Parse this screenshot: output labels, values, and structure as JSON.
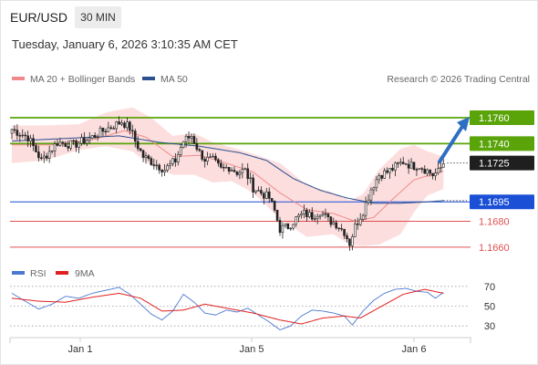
{
  "header": {
    "pair": "EUR/USD",
    "timeframe": "30 MIN",
    "datetime": "Tuesday, January 6, 2026 3:10:35 AM CET"
  },
  "legend": {
    "ma20": "MA 20 + Bollinger Bands",
    "ma50": "MA 50",
    "credit": "Research © 2026 Trading Central",
    "rsi": "RSI",
    "rsi_ma": "9MA"
  },
  "colors": {
    "resistance": "#5aa40a",
    "current": "#1f1f1f",
    "pivot": "#1a4fd6",
    "support": "#e05050",
    "ma20": "#f08a8a",
    "ma50": "#2b4f8f",
    "band": "#fbd3d3",
    "rsi": "#4a78d0",
    "rsi_ma": "#e02020",
    "arrow": "#2e6fc2"
  },
  "chart_data": [
    {
      "type": "candlestick",
      "x_labels": [
        "Jan 1",
        "Jan 5",
        "Jan 6"
      ],
      "ylim": [
        1.1655,
        1.1772
      ],
      "series": [
        {
          "name": "MA 20 + Bollinger Bands"
        },
        {
          "name": "MA 50"
        }
      ],
      "levels": [
        {
          "value": 1.176,
          "label": "1.1760",
          "kind": "resistance"
        },
        {
          "value": 1.174,
          "label": "1.1740",
          "kind": "resistance"
        },
        {
          "value": 1.1725,
          "label": "1.1725",
          "kind": "current"
        },
        {
          "value": 1.1695,
          "label": "1.1695",
          "kind": "pivot"
        },
        {
          "value": 1.168,
          "label": "1.1680",
          "kind": "support"
        },
        {
          "value": 1.166,
          "label": "1.1660",
          "kind": "support"
        }
      ],
      "anchors": [
        [
          0,
          1.1751
        ],
        [
          6,
          1.1745
        ],
        [
          11,
          1.1727
        ],
        [
          17,
          1.1741
        ],
        [
          23,
          1.1739
        ],
        [
          29,
          1.1744
        ],
        [
          35,
          1.1751
        ],
        [
          41,
          1.1757
        ],
        [
          44,
          1.1752
        ],
        [
          46,
          1.1742
        ],
        [
          49,
          1.173
        ],
        [
          53,
          1.1725
        ],
        [
          57,
          1.172
        ],
        [
          61,
          1.1727
        ],
        [
          64,
          1.1742
        ],
        [
          67,
          1.1746
        ],
        [
          70,
          1.1733
        ],
        [
          72,
          1.1728
        ],
        [
          75,
          1.1727
        ],
        [
          78,
          1.172
        ],
        [
          81,
          1.1722
        ],
        [
          84,
          1.1718
        ],
        [
          87,
          1.1719
        ],
        [
          90,
          1.1706
        ],
        [
          93,
          1.1702
        ],
        [
          96,
          1.1698
        ],
        [
          98,
          1.1688
        ],
        [
          100,
          1.1674
        ],
        [
          103,
          1.1676
        ],
        [
          106,
          1.1682
        ],
        [
          109,
          1.1686
        ],
        [
          112,
          1.1684
        ],
        [
          115,
          1.1688
        ],
        [
          118,
          1.1681
        ],
        [
          121,
          1.1678
        ],
        [
          124,
          1.1672
        ],
        [
          126,
          1.1663
        ],
        [
          128,
          1.1676
        ],
        [
          131,
          1.1688
        ],
        [
          134,
          1.1705
        ],
        [
          137,
          1.1716
        ],
        [
          140,
          1.1718
        ],
        [
          143,
          1.1722
        ],
        [
          146,
          1.1726
        ],
        [
          149,
          1.1723
        ],
        [
          152,
          1.1723
        ],
        [
          155,
          1.1719
        ],
        [
          157,
          1.1716
        ],
        [
          159,
          1.1718
        ],
        [
          161,
          1.1725
        ]
      ],
      "ma20_points": [
        [
          0,
          1.1739
        ],
        [
          15,
          1.1739
        ],
        [
          30,
          1.1743
        ],
        [
          42,
          1.175
        ],
        [
          50,
          1.1745
        ],
        [
          60,
          1.173
        ],
        [
          70,
          1.1731
        ],
        [
          80,
          1.1725
        ],
        [
          90,
          1.1718
        ],
        [
          100,
          1.1702
        ],
        [
          110,
          1.1689
        ],
        [
          120,
          1.1686
        ],
        [
          128,
          1.168
        ],
        [
          135,
          1.1683
        ],
        [
          142,
          1.1697
        ],
        [
          150,
          1.1712
        ],
        [
          161,
          1.1719
        ]
      ],
      "ma50_points": [
        [
          0,
          1.1742
        ],
        [
          20,
          1.1744
        ],
        [
          40,
          1.1746
        ],
        [
          55,
          1.1741
        ],
        [
          70,
          1.1738
        ],
        [
          85,
          1.1733
        ],
        [
          95,
          1.1727
        ],
        [
          105,
          1.1713
        ],
        [
          115,
          1.1704
        ],
        [
          125,
          1.1698
        ],
        [
          135,
          1.1694
        ],
        [
          145,
          1.1694
        ],
        [
          155,
          1.1695
        ],
        [
          161,
          1.1696
        ]
      ],
      "bb_upper": [
        [
          0,
          1.1754
        ],
        [
          12,
          1.1754
        ],
        [
          25,
          1.1755
        ],
        [
          35,
          1.1764
        ],
        [
          45,
          1.1768
        ],
        [
          52,
          1.176
        ],
        [
          60,
          1.1746
        ],
        [
          68,
          1.1748
        ],
        [
          75,
          1.1741
        ],
        [
          82,
          1.1737
        ],
        [
          90,
          1.1732
        ],
        [
          100,
          1.1725
        ],
        [
          110,
          1.1708
        ],
        [
          120,
          1.1702
        ],
        [
          126,
          1.1696
        ],
        [
          131,
          1.1701
        ],
        [
          137,
          1.172
        ],
        [
          145,
          1.1736
        ],
        [
          150,
          1.1739
        ],
        [
          155,
          1.1734
        ],
        [
          161,
          1.173
        ]
      ],
      "bb_lower": [
        [
          0,
          1.1725
        ],
        [
          12,
          1.1727
        ],
        [
          25,
          1.1735
        ],
        [
          35,
          1.1738
        ],
        [
          45,
          1.1734
        ],
        [
          52,
          1.1723
        ],
        [
          60,
          1.1716
        ],
        [
          68,
          1.1716
        ],
        [
          75,
          1.171
        ],
        [
          82,
          1.1711
        ],
        [
          90,
          1.1702
        ],
        [
          100,
          1.1682
        ],
        [
          110,
          1.1668
        ],
        [
          120,
          1.167
        ],
        [
          126,
          1.1662
        ],
        [
          131,
          1.1661
        ],
        [
          137,
          1.1662
        ],
        [
          145,
          1.167
        ],
        [
          150,
          1.1687
        ],
        [
          155,
          1.17
        ],
        [
          161,
          1.1705
        ]
      ],
      "projection": {
        "from": 1.1726,
        "to": 1.176
      }
    },
    {
      "type": "line",
      "ylim": [
        20,
        80
      ],
      "y_ticks": [
        70,
        50,
        30
      ],
      "series": [
        {
          "name": "RSI",
          "points": [
            [
              0,
              63
            ],
            [
              5,
              55
            ],
            [
              10,
              47
            ],
            [
              15,
              52
            ],
            [
              20,
              60
            ],
            [
              25,
              58
            ],
            [
              30,
              63
            ],
            [
              35,
              66
            ],
            [
              40,
              69
            ],
            [
              44,
              62
            ],
            [
              48,
              52
            ],
            [
              52,
              42
            ],
            [
              56,
              36
            ],
            [
              60,
              45
            ],
            [
              64,
              62
            ],
            [
              68,
              54
            ],
            [
              72,
              43
            ],
            [
              76,
              41
            ],
            [
              80,
              46
            ],
            [
              84,
              44
            ],
            [
              88,
              48
            ],
            [
              92,
              41
            ],
            [
              96,
              34
            ],
            [
              100,
              26
            ],
            [
              104,
              30
            ],
            [
              108,
              40
            ],
            [
              112,
              46
            ],
            [
              116,
              45
            ],
            [
              120,
              43
            ],
            [
              124,
              40
            ],
            [
              127,
              31
            ],
            [
              131,
              45
            ],
            [
              135,
              56
            ],
            [
              139,
              63
            ],
            [
              143,
              67
            ],
            [
              147,
              68
            ],
            [
              151,
              65
            ],
            [
              155,
              64
            ],
            [
              158,
              58
            ],
            [
              161,
              64
            ]
          ]
        },
        {
          "name": "9MA",
          "points": [
            [
              0,
              58
            ],
            [
              10,
              55
            ],
            [
              20,
              54
            ],
            [
              30,
              59
            ],
            [
              40,
              63
            ],
            [
              48,
              58
            ],
            [
              56,
              45
            ],
            [
              64,
              46
            ],
            [
              72,
              52
            ],
            [
              80,
              48
            ],
            [
              90,
              43
            ],
            [
              100,
              36
            ],
            [
              108,
              32
            ],
            [
              116,
              38
            ],
            [
              124,
              40
            ],
            [
              130,
              38
            ],
            [
              138,
              50
            ],
            [
              146,
              62
            ],
            [
              154,
              67
            ],
            [
              161,
              63
            ]
          ]
        }
      ]
    }
  ]
}
